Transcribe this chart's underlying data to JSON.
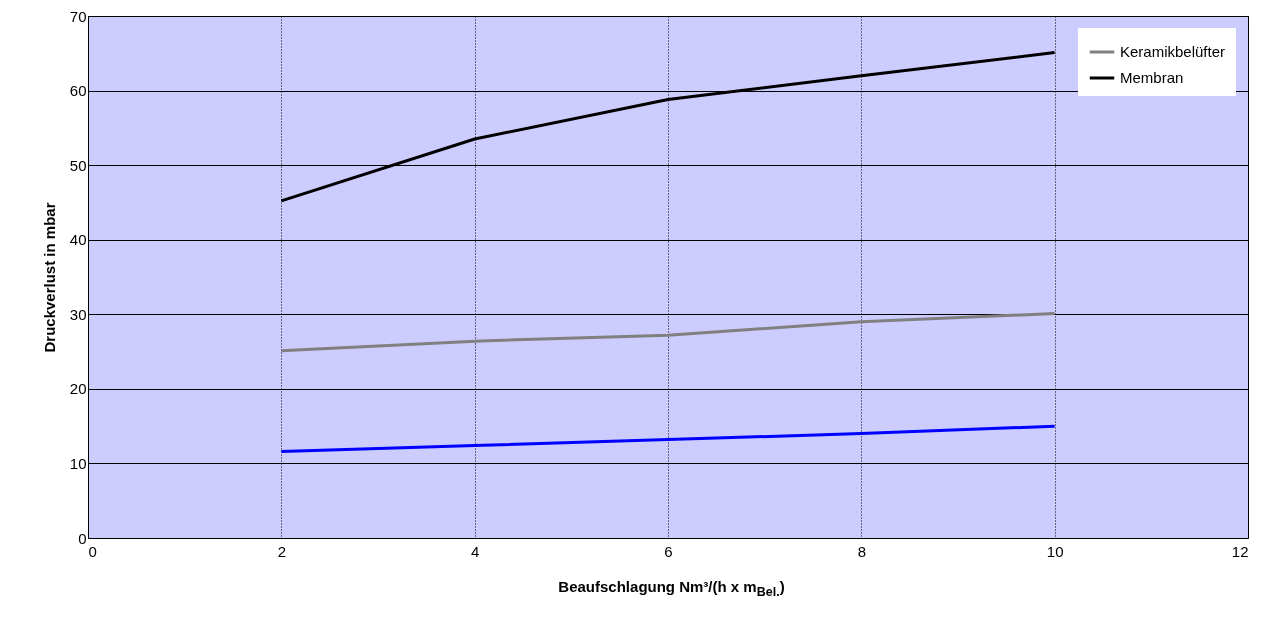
{
  "chart_data": {
    "type": "line",
    "xlabel": "Beaufschlagung Nm³/(h x m$_{Bel.}$)",
    "ylabel": "Druckverlust in mbar",
    "x": [
      2,
      4,
      6,
      8,
      10
    ],
    "series": [
      {
        "color": "#0000ff",
        "values": [
          11.6,
          12.4,
          13.2,
          14,
          15
        ]
      },
      {
        "name": "Keramikbelüfter",
        "color": "#808080",
        "values": [
          25.1,
          26.4,
          27.2,
          29,
          30.1
        ]
      },
      {
        "name": "Membran",
        "color": "#000000",
        "values": [
          45.2,
          53.5,
          58.8,
          62,
          65.1
        ]
      }
    ],
    "xlim": [
      0,
      12
    ],
    "xticks": [
      0,
      2,
      4,
      6,
      8,
      10,
      12
    ],
    "ylim": [
      0,
      70
    ],
    "yticks": [
      0,
      10,
      20,
      30,
      40,
      50,
      60,
      70
    ],
    "grid": true,
    "legend": "top right",
    "marker": "none",
    "line_style": "solid"
  }
}
